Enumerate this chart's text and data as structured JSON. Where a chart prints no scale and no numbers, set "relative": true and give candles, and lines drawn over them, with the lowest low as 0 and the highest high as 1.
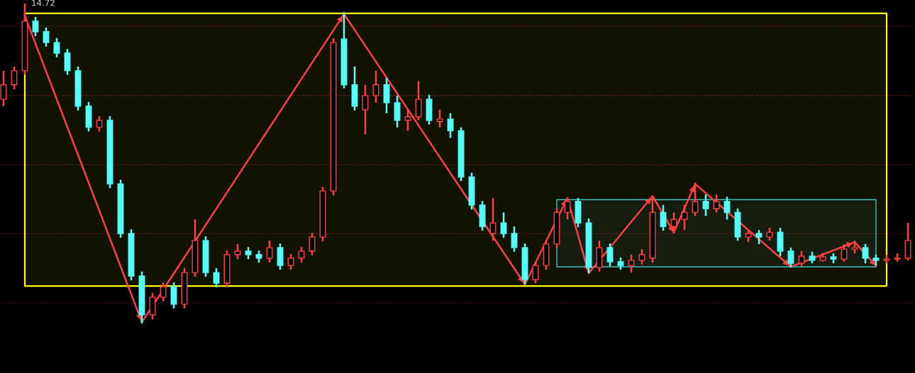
{
  "chart_data": {
    "type": "candlestick",
    "relative": true,
    "categories": [
      null,
      null,
      null,
      null,
      null,
      null,
      null,
      null,
      null,
      null,
      null,
      null,
      null,
      null,
      null,
      null,
      null,
      null,
      null,
      null,
      null,
      null,
      null,
      null,
      null,
      null,
      null,
      null,
      null,
      null,
      null,
      null,
      null,
      null,
      null,
      null,
      null,
      null,
      null,
      null,
      null,
      null,
      null,
      null,
      null,
      null,
      null,
      null,
      null,
      null,
      null,
      null,
      null,
      null,
      null,
      null,
      null,
      null,
      null,
      null,
      null,
      null,
      null,
      null,
      null,
      null,
      null,
      null,
      null,
      null,
      null,
      null,
      null,
      null,
      null,
      null,
      null,
      null,
      null,
      null,
      null,
      null,
      null,
      null,
      null,
      null
    ],
    "ohlc": [
      [
        0.701,
        0.79,
        0.679,
        0.746
      ],
      [
        0.746,
        0.803,
        0.732,
        0.79
      ],
      [
        0.79,
        1.0,
        0.777,
        0.945
      ],
      [
        0.945,
        0.958,
        0.898,
        0.912
      ],
      [
        0.912,
        0.925,
        0.865,
        0.878
      ],
      [
        0.878,
        0.892,
        0.832,
        0.845
      ],
      [
        0.845,
        0.858,
        0.777,
        0.79
      ],
      [
        0.79,
        0.803,
        0.666,
        0.679
      ],
      [
        0.679,
        0.692,
        0.6,
        0.613
      ],
      [
        0.613,
        0.648,
        0.6,
        0.635
      ],
      [
        0.635,
        0.648,
        0.423,
        0.436
      ],
      [
        0.436,
        0.449,
        0.268,
        0.281
      ],
      [
        0.281,
        0.294,
        0.135,
        0.148
      ],
      [
        0.148,
        0.162,
        0.0,
        0.027
      ],
      [
        0.027,
        0.095,
        0.013,
        0.082
      ],
      [
        0.082,
        0.128,
        0.069,
        0.115
      ],
      [
        0.115,
        0.128,
        0.047,
        0.06
      ],
      [
        0.06,
        0.173,
        0.047,
        0.159
      ],
      [
        0.159,
        0.325,
        0.146,
        0.259
      ],
      [
        0.259,
        0.272,
        0.146,
        0.159
      ],
      [
        0.159,
        0.173,
        0.113,
        0.126
      ],
      [
        0.126,
        0.228,
        0.113,
        0.215
      ],
      [
        0.215,
        0.248,
        0.201,
        0.226
      ],
      [
        0.226,
        0.239,
        0.201,
        0.215
      ],
      [
        0.215,
        0.228,
        0.19,
        0.204
      ],
      [
        0.204,
        0.259,
        0.19,
        0.237
      ],
      [
        0.237,
        0.25,
        0.168,
        0.181
      ],
      [
        0.181,
        0.217,
        0.168,
        0.204
      ],
      [
        0.204,
        0.239,
        0.19,
        0.226
      ],
      [
        0.226,
        0.283,
        0.213,
        0.27
      ],
      [
        0.27,
        0.427,
        0.257,
        0.414
      ],
      [
        0.414,
        0.892,
        0.4,
        0.878
      ],
      [
        0.889,
        0.973,
        0.735,
        0.746
      ],
      [
        0.746,
        0.803,
        0.666,
        0.679
      ],
      [
        0.668,
        0.746,
        0.591,
        0.712
      ],
      [
        0.712,
        0.79,
        0.69,
        0.746
      ],
      [
        0.746,
        0.768,
        0.657,
        0.69
      ],
      [
        0.69,
        0.712,
        0.613,
        0.635
      ],
      [
        0.635,
        0.668,
        0.602,
        0.646
      ],
      [
        0.646,
        0.757,
        0.635,
        0.701
      ],
      [
        0.701,
        0.715,
        0.622,
        0.635
      ],
      [
        0.631,
        0.668,
        0.613,
        0.639
      ],
      [
        0.639,
        0.657,
        0.58,
        0.602
      ],
      [
        0.602,
        0.613,
        0.445,
        0.458
      ],
      [
        0.458,
        0.471,
        0.356,
        0.37
      ],
      [
        0.37,
        0.383,
        0.29,
        0.303
      ],
      [
        0.281,
        0.392,
        0.259,
        0.314
      ],
      [
        0.314,
        0.347,
        0.268,
        0.281
      ],
      [
        0.281,
        0.303,
        0.224,
        0.237
      ],
      [
        0.237,
        0.25,
        0.122,
        0.137
      ],
      [
        0.137,
        0.193,
        0.126,
        0.181
      ],
      [
        0.181,
        0.261,
        0.168,
        0.248
      ],
      [
        0.248,
        0.361,
        0.235,
        0.347
      ],
      [
        0.347,
        0.392,
        0.325,
        0.381
      ],
      [
        0.381,
        0.392,
        0.301,
        0.314
      ],
      [
        0.314,
        0.328,
        0.157,
        0.175
      ],
      [
        0.175,
        0.259,
        0.162,
        0.237
      ],
      [
        0.237,
        0.25,
        0.179,
        0.193
      ],
      [
        0.193,
        0.206,
        0.168,
        0.181
      ],
      [
        0.181,
        0.215,
        0.159,
        0.197
      ],
      [
        0.197,
        0.232,
        0.184,
        0.215
      ],
      [
        0.204,
        0.4,
        0.19,
        0.347
      ],
      [
        0.347,
        0.37,
        0.29,
        0.303
      ],
      [
        0.303,
        0.347,
        0.281,
        0.325
      ],
      [
        0.325,
        0.37,
        0.292,
        0.347
      ],
      [
        0.347,
        0.44,
        0.336,
        0.381
      ],
      [
        0.381,
        0.403,
        0.336,
        0.359
      ],
      [
        0.359,
        0.403,
        0.347,
        0.381
      ],
      [
        0.381,
        0.396,
        0.325,
        0.347
      ],
      [
        0.347,
        0.359,
        0.259,
        0.27
      ],
      [
        0.27,
        0.292,
        0.254,
        0.281
      ],
      [
        0.281,
        0.292,
        0.248,
        0.27
      ],
      [
        0.27,
        0.299,
        0.259,
        0.285
      ],
      [
        0.285,
        0.299,
        0.21,
        0.226
      ],
      [
        0.226,
        0.237,
        0.175,
        0.188
      ],
      [
        0.188,
        0.226,
        0.179,
        0.21
      ],
      [
        0.21,
        0.224,
        0.188,
        0.197
      ],
      [
        0.197,
        0.221,
        0.193,
        0.208
      ],
      [
        0.208,
        0.219,
        0.188,
        0.201
      ],
      [
        0.201,
        0.248,
        0.193,
        0.232
      ],
      [
        0.232,
        0.259,
        0.219,
        0.237
      ],
      [
        0.237,
        0.248,
        0.188,
        0.204
      ],
      [
        0.204,
        0.215,
        0.181,
        0.197
      ],
      [
        0.197,
        0.215,
        0.188,
        0.201
      ],
      [
        0.201,
        0.219,
        0.193,
        0.204
      ],
      [
        0.204,
        0.314,
        0.197,
        0.259
      ]
    ],
    "colors": [
      "#ff4040",
      "#ff4040",
      "#ff4040",
      "#54fcfc",
      "#54fcfc",
      "#54fcfc",
      "#54fcfc",
      "#54fcfc",
      "#54fcfc",
      "#ff4040",
      "#54fcfc",
      "#54fcfc",
      "#54fcfc",
      "#54fcfc",
      "#ff4040",
      "#ff4040",
      "#54fcfc",
      "#ff4040",
      "#ff4040",
      "#54fcfc",
      "#54fcfc",
      "#ff4040",
      "#ff4040",
      "#54fcfc",
      "#54fcfc",
      "#ff4040",
      "#54fcfc",
      "#ff4040",
      "#ff4040",
      "#ff4040",
      "#ff4040",
      "#ff4040",
      "#54fcfc",
      "#54fcfc",
      "#ff4040",
      "#ff4040",
      "#54fcfc",
      "#54fcfc",
      "#ff4040",
      "#ff4040",
      "#54fcfc",
      "#ff4040",
      "#54fcfc",
      "#54fcfc",
      "#54fcfc",
      "#54fcfc",
      "#ff4040",
      "#54fcfc",
      "#54fcfc",
      "#54fcfc",
      "#ff4040",
      "#ff4040",
      "#ff4040",
      "#ff4040",
      "#54fcfc",
      "#54fcfc",
      "#ff4040",
      "#54fcfc",
      "#54fcfc",
      "#ff4040",
      "#ff4040",
      "#ff4040",
      "#54fcfc",
      "#ff4040",
      "#ff4040",
      "#ff4040",
      "#54fcfc",
      "#ff4040",
      "#54fcfc",
      "#54fcfc",
      "#ff4040",
      "#54fcfc",
      "#ff4040",
      "#54fcfc",
      "#54fcfc",
      "#ff4040",
      "#54fcfc",
      "#ff4040",
      "#54fcfc",
      "#ff4040",
      "#ff4040",
      "#54fcfc",
      "#54fcfc",
      "#ff4040",
      "#ff4040",
      "#ff4040"
    ],
    "series": [
      {
        "type": "line",
        "color": "#ff4040",
        "values": [
          null,
          null,
          0.962,
          null,
          null,
          null,
          null,
          null,
          null,
          null,
          null,
          null,
          null,
          0.004,
          null,
          null,
          null,
          null,
          null,
          null,
          null,
          null,
          null,
          null,
          null,
          null,
          null,
          null,
          null,
          null,
          null,
          null,
          0.967,
          null,
          null,
          null,
          null,
          null,
          null,
          null,
          null,
          null,
          null,
          null,
          null,
          null,
          null,
          null,
          null,
          0.122,
          null,
          null,
          null,
          0.392,
          null,
          0.157,
          null,
          null,
          null,
          null,
          null,
          0.398,
          null,
          0.285,
          null,
          0.436,
          null,
          null,
          null,
          null,
          null,
          null,
          null,
          null,
          0.177,
          null,
          null,
          null,
          null,
          null,
          0.254,
          null,
          0.181,
          null,
          null,
          null
        ]
      },
      {
        "type": "line",
        "color": "#ffff00",
        "values": [
          null,
          null,
          null,
          null,
          null,
          null,
          null,
          null,
          null,
          null,
          null,
          null,
          null,
          null,
          null,
          null,
          null,
          null,
          null,
          null,
          null,
          null,
          null,
          null,
          null,
          null,
          null,
          null,
          null,
          null,
          null,
          null,
          null,
          null,
          null,
          null,
          null,
          null,
          null,
          null,
          null,
          null,
          null,
          null,
          null,
          null,
          null,
          null,
          null,
          null,
          null,
          null,
          null,
          null,
          null,
          null,
          null,
          null,
          null,
          null,
          null,
          null,
          null,
          null,
          null,
          null,
          null,
          null,
          null,
          null,
          null,
          null,
          null,
          null,
          null,
          null,
          null,
          null,
          null,
          null,
          null,
          null,
          null,
          null,
          null,
          null
        ],
        "lower": [
          null,
          null,
          0.117,
          0.117,
          0.117,
          0.117,
          0.117,
          0.117,
          0.117,
          0.117,
          0.117,
          0.117,
          0.117,
          0.117,
          0.117,
          0.117,
          0.117,
          0.117,
          0.117,
          0.117,
          0.117,
          0.117,
          0.117,
          0.117,
          0.117,
          0.117,
          0.117,
          0.117,
          0.117,
          0.117,
          0.117,
          0.117,
          0.117,
          0.117,
          0.117,
          0.117,
          0.117,
          0.117,
          0.117,
          0.117,
          0.117,
          0.117,
          0.117,
          0.117,
          0.117,
          0.117,
          0.117,
          0.117,
          0.117,
          0.117,
          0.117,
          0.117,
          0.117,
          0.117,
          0.117,
          0.117,
          0.117,
          0.117,
          0.117,
          0.117,
          0.117,
          0.117,
          0.117,
          0.117,
          0.117,
          0.117,
          0.117,
          0.117,
          0.117,
          0.117,
          0.117,
          0.117,
          0.117,
          0.117,
          0.117,
          0.117,
          0.117,
          0.117,
          0.117,
          0.117,
          0.117,
          0.117,
          0.117,
          0.117,
          null,
          null
        ],
        "upper": [
          null,
          null,
          0.969,
          0.969,
          0.969,
          0.969,
          0.969,
          0.969,
          0.969,
          0.969,
          0.969,
          0.969,
          0.969,
          0.969,
          0.969,
          0.969,
          0.969,
          0.969,
          0.969,
          0.969,
          0.969,
          0.969,
          0.969,
          0.969,
          0.969,
          0.969,
          0.969,
          0.969,
          0.969,
          0.969,
          0.969,
          0.969,
          0.969,
          0.969,
          0.969,
          0.969,
          0.969,
          0.969,
          0.969,
          0.969,
          0.969,
          0.969,
          0.969,
          0.969,
          0.969,
          0.969,
          0.969,
          0.969,
          0.969,
          0.969,
          0.969,
          0.969,
          0.969,
          0.969,
          0.969,
          0.969,
          0.969,
          0.969,
          0.969,
          0.969,
          0.969,
          0.969,
          0.969,
          0.969,
          0.969,
          0.969,
          0.969,
          0.969,
          0.969,
          0.969,
          0.969,
          0.969,
          0.969,
          0.969,
          0.969,
          0.969,
          0.969,
          0.969,
          0.969,
          0.969,
          0.969,
          0.969,
          0.969,
          0.969,
          null,
          null
        ]
      },
      {
        "type": "line",
        "color": "#40c0c0",
        "values": [
          null,
          null,
          null,
          null,
          null,
          null,
          null,
          null,
          null,
          null,
          null,
          null,
          null,
          null,
          null,
          null,
          null,
          null,
          null,
          null,
          null,
          null,
          null,
          null,
          null,
          null,
          null,
          null,
          null,
          null,
          null,
          null,
          null,
          null,
          null,
          null,
          null,
          null,
          null,
          null,
          null,
          null,
          null,
          null,
          null,
          null,
          null,
          null,
          null,
          null,
          null,
          null,
          null,
          null,
          null,
          null,
          null,
          null,
          null,
          null,
          null,
          null,
          null,
          null,
          null,
          null,
          null,
          null,
          null,
          null,
          null,
          null,
          null,
          null,
          null,
          null,
          null,
          null,
          null,
          null,
          null,
          null,
          null,
          null,
          null,
          null
        ],
        "lower": [
          null,
          null,
          null,
          null,
          null,
          null,
          null,
          null,
          null,
          null,
          null,
          null,
          null,
          null,
          null,
          null,
          null,
          null,
          null,
          null,
          null,
          null,
          null,
          null,
          null,
          null,
          null,
          null,
          null,
          null,
          null,
          null,
          null,
          null,
          null,
          null,
          null,
          null,
          null,
          null,
          null,
          null,
          null,
          null,
          null,
          null,
          null,
          null,
          null,
          null,
          null,
          null,
          0.177,
          0.177,
          0.177,
          0.177,
          0.177,
          0.177,
          0.177,
          0.177,
          0.177,
          0.177,
          0.177,
          0.177,
          0.177,
          0.177,
          0.177,
          0.177,
          0.177,
          0.177,
          0.177,
          0.177,
          0.177,
          0.177,
          0.177,
          0.177,
          0.177,
          0.177,
          0.177,
          0.177,
          0.177,
          0.177,
          0.177,
          null,
          null,
          null
        ],
        "upper": [
          null,
          null,
          null,
          null,
          null,
          null,
          null,
          null,
          null,
          null,
          null,
          null,
          null,
          null,
          null,
          null,
          null,
          null,
          null,
          null,
          null,
          null,
          null,
          null,
          null,
          null,
          null,
          null,
          null,
          null,
          null,
          null,
          null,
          null,
          null,
          null,
          null,
          null,
          null,
          null,
          null,
          null,
          null,
          null,
          null,
          null,
          null,
          null,
          null,
          null,
          null,
          null,
          0.387,
          0.387,
          0.387,
          0.387,
          0.387,
          0.387,
          0.387,
          0.387,
          0.387,
          0.387,
          0.387,
          0.387,
          0.387,
          0.387,
          0.387,
          0.387,
          0.387,
          0.387,
          0.387,
          0.387,
          0.387,
          0.387,
          0.387,
          0.387,
          0.387,
          0.387,
          0.387,
          0.387,
          0.387,
          0.387,
          0.387,
          null,
          null,
          null
        ]
      }
    ],
    "ref_lines": [
      {
        "axis": "y",
        "value": 0.929,
        "color": "#8b1a1a",
        "line_style": "dotted"
      },
      {
        "axis": "y",
        "value": 0.712,
        "color": "#8b1a1a",
        "line_style": "dotted"
      },
      {
        "axis": "y",
        "value": 0.496,
        "color": "#8b1a1a",
        "line_style": "dotted"
      },
      {
        "axis": "y",
        "value": 0.281,
        "color": "#8b1a1a",
        "line_style": "dotted"
      },
      {
        "axis": "y",
        "value": 0.064,
        "color": "#8b1a1a",
        "line_style": "dotted"
      }
    ],
    "annotations": [
      "14.72"
    ]
  }
}
